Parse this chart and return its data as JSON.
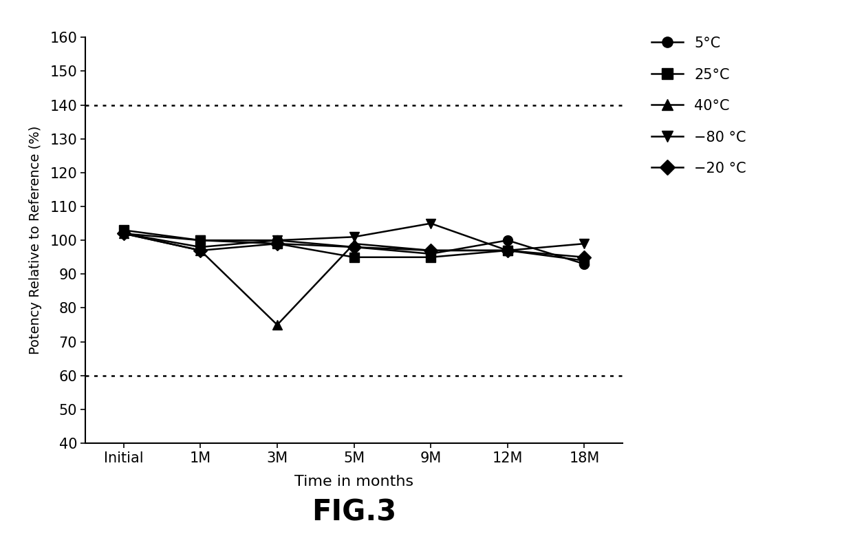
{
  "x_labels": [
    "Initial",
    "1M",
    "3M",
    "5M",
    "9M",
    "12M",
    "18M"
  ],
  "x_values": [
    0,
    1,
    2,
    3,
    4,
    5,
    6
  ],
  "series": {
    "5C": {
      "label": "5°C",
      "marker": "o",
      "values": [
        102,
        98,
        100,
        98,
        96,
        100,
        93
      ]
    },
    "25C": {
      "label": "25°C",
      "marker": "s",
      "values": [
        103,
        100,
        99,
        95,
        95,
        97,
        94
      ]
    },
    "40C": {
      "label": "40°C",
      "marker": "^",
      "values": [
        102,
        97,
        75,
        99,
        97,
        97,
        null
      ]
    },
    "m80C": {
      "label": "−80 °C",
      "marker": "v",
      "values": [
        102,
        100,
        100,
        101,
        105,
        97,
        99
      ]
    },
    "m20C": {
      "label": "−20 °C",
      "marker": "D",
      "values": [
        102,
        97,
        99,
        98,
        97,
        97,
        95
      ]
    }
  },
  "ylim": [
    40,
    160
  ],
  "yticks": [
    40,
    50,
    60,
    70,
    80,
    90,
    100,
    110,
    120,
    130,
    140,
    150,
    160
  ],
  "hlines": [
    60,
    140
  ],
  "ylabel": "Potency Relative to Reference (%)",
  "xlabel": "Time in months",
  "figcaption": "FIG.3",
  "line_color": "#000000",
  "background_color": "#ffffff",
  "marker_size": 10,
  "line_width": 1.8
}
